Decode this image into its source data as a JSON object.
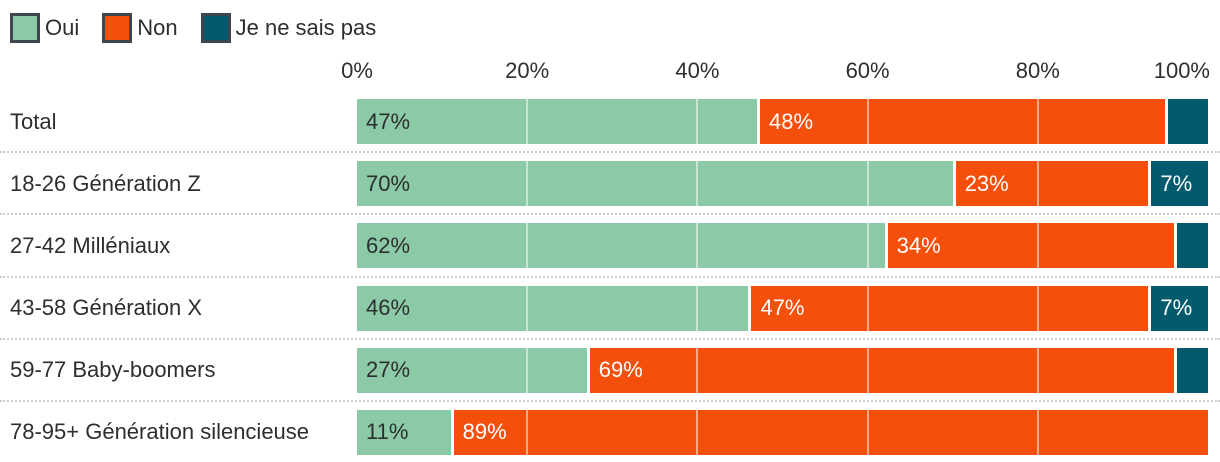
{
  "chart_data": {
    "type": "bar",
    "orientation": "horizontal",
    "stacked": true,
    "legend_position": "top-left",
    "categories": [
      "Total",
      "18-26 Génération Z",
      "27-42 Milléniaux",
      "43-58 Génération X",
      "59-77 Baby-boomers",
      "78-95+ Génération silencieuse"
    ],
    "series": [
      {
        "name": "Oui",
        "color": "#8CCAA7",
        "label_color": "#2b2f31",
        "values": [
          47,
          70,
          62,
          46,
          27,
          11
        ],
        "labels": [
          "47%",
          "70%",
          "62%",
          "46%",
          "27%",
          "11%"
        ]
      },
      {
        "name": "Non",
        "color": "#F4500C",
        "label_color": "#ffffff",
        "values": [
          48,
          23,
          34,
          47,
          69,
          89
        ],
        "labels": [
          "48%",
          "23%",
          "34%",
          "47%",
          "69%",
          "89%"
        ]
      },
      {
        "name": "Je ne sais pas",
        "color": "#045A6D",
        "label_color": "#ffffff",
        "values": [
          5,
          7,
          4,
          7,
          4,
          0
        ],
        "labels": [
          null,
          "7%",
          null,
          "7%",
          null,
          null
        ]
      }
    ],
    "x_axis": {
      "ticks": [
        "0%",
        "20%",
        "40%",
        "60%",
        "80%",
        "100%"
      ],
      "range": [
        0,
        100
      ],
      "gridlines_over_bars": [
        20,
        40,
        60,
        80
      ],
      "gridline_color": "rgba(255,255,255,0.5)"
    },
    "separator_style": "dotted",
    "colors": {
      "oui": "#8CCAA7",
      "non": "#F4500C",
      "je_ne_sais_pas": "#045A6D",
      "text": "#2b2f31",
      "legend_border": "#3f474c",
      "separator": "#c9cdcf"
    }
  }
}
